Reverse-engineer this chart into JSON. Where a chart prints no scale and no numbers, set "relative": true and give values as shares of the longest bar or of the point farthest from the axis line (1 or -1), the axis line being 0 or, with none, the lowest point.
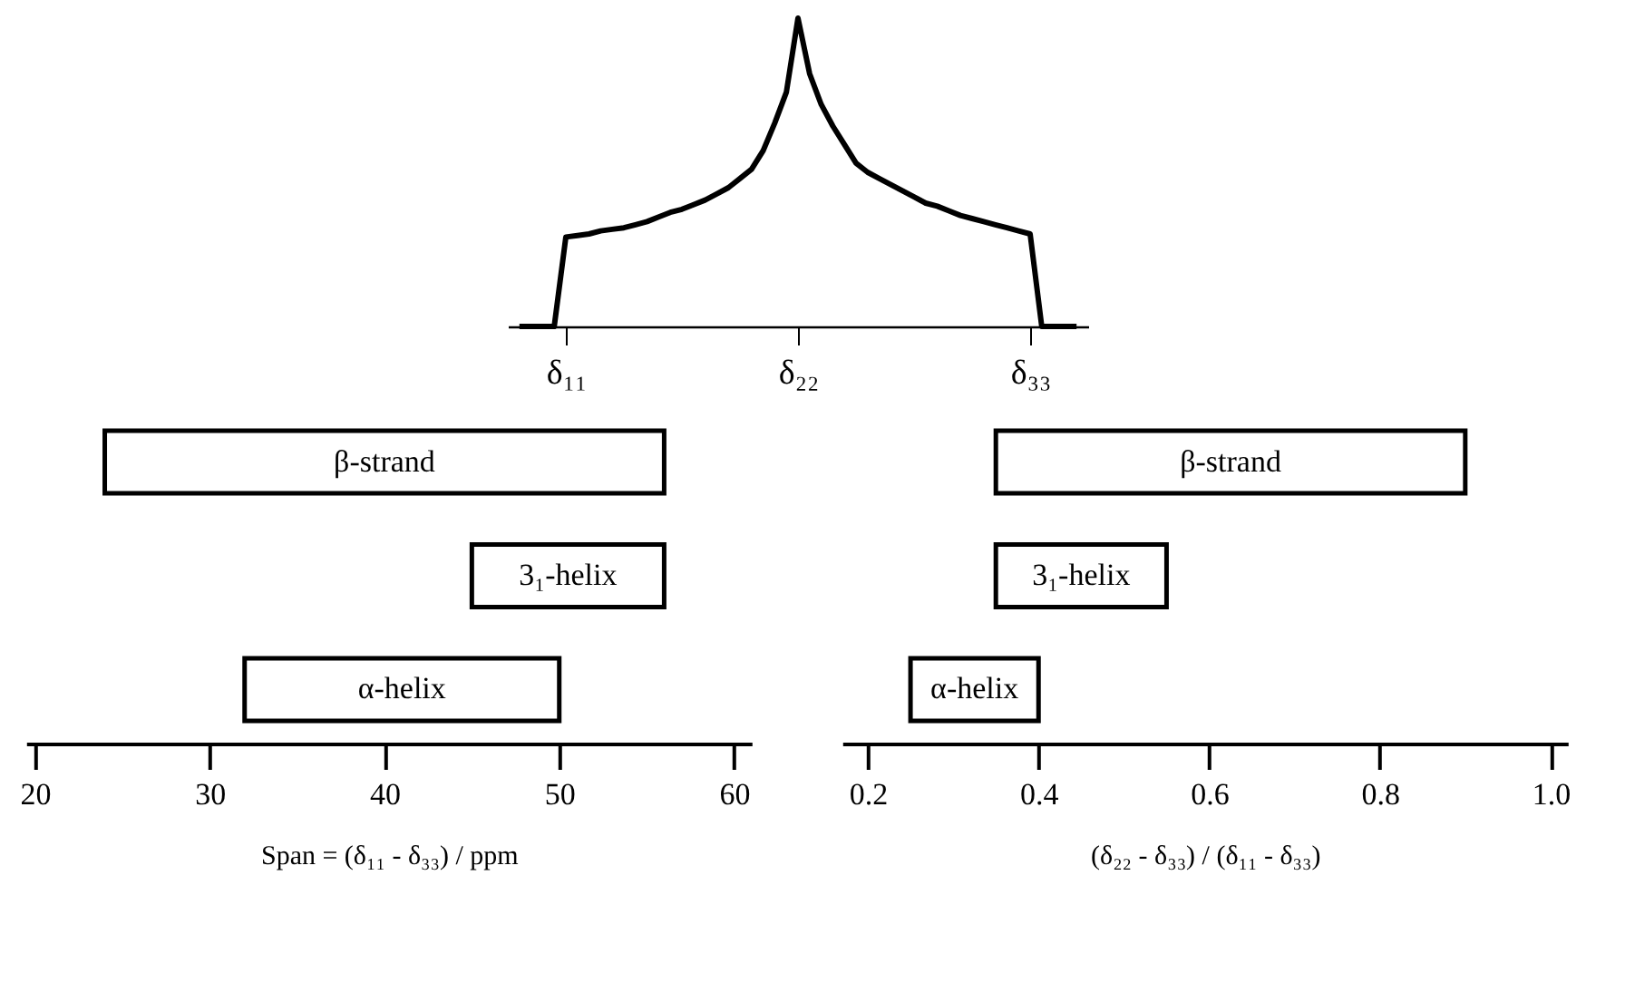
{
  "chart_data": [
    {
      "type": "line",
      "relative": true,
      "tick_labels": "x",
      "grid": false,
      "marker": "none",
      "line_style": "solid",
      "categories": [
        null,
        null,
        null,
        null,
        "δ₁₁",
        null,
        null,
        null,
        null,
        null,
        null,
        null,
        null,
        null,
        null,
        null,
        null,
        null,
        null,
        null,
        null,
        null,
        null,
        null,
        "δ₂₂",
        null,
        null,
        null,
        null,
        null,
        null,
        null,
        null,
        null,
        null,
        null,
        null,
        null,
        null,
        null,
        null,
        null,
        null,
        null,
        "δ₃₃",
        null,
        null,
        null,
        null
      ],
      "series": [
        {
          "color": "#000000",
          "values": [
            0,
            0,
            0,
            0,
            0.29,
            0.295,
            0.3,
            0.31,
            0.315,
            0.32,
            0.33,
            0.34,
            0.355,
            0.37,
            0.38,
            0.395,
            0.41,
            0.43,
            0.45,
            0.48,
            0.51,
            0.57,
            0.66,
            0.76,
            1,
            0.82,
            0.72,
            0.65,
            0.59,
            0.53,
            0.5,
            0.48,
            0.46,
            0.44,
            0.42,
            0.4,
            0.39,
            0.375,
            0.36,
            0.35,
            0.34,
            0.33,
            0.32,
            0.31,
            0.3,
            0,
            0,
            0,
            0
          ]
        }
      ]
    },
    {
      "type": "bar",
      "orientation": "horizontal",
      "tick_labels": "x",
      "grid": false,
      "categories": [
        "β-strand",
        "3₁-helix",
        "α-helix"
      ],
      "base": [
        24,
        45,
        32
      ],
      "values": [
        32,
        11,
        18
      ],
      "color": "#ffffff",
      "xlim": [
        19.5,
        61
      ],
      "xticks": [
        20,
        30,
        40,
        50,
        60
      ],
      "xlabel": "Span = (δ₁₁ - δ₃₃) / ppm"
    },
    {
      "type": "bar",
      "orientation": "horizontal",
      "tick_labels": "x",
      "grid": false,
      "categories": [
        "β-strand",
        "3₁-helix",
        "α-helix"
      ],
      "base": [
        0.35,
        0.35,
        0.25
      ],
      "values": [
        0.55,
        0.2,
        0.15
      ],
      "color": "#ffffff",
      "xlim": [
        0.17,
        1.02
      ],
      "xticks": [
        {
          "value": 0.2,
          "label": "0.2"
        },
        {
          "value": 0.4,
          "label": "0.4"
        },
        {
          "value": 0.6,
          "label": "0.6"
        },
        {
          "value": 0.8,
          "label": "0.8"
        },
        {
          "value": 1.0,
          "label": "1.0"
        }
      ],
      "xlabel": "(δ₂₂ - δ₃₃) / (δ₁₁ - δ₃₃)"
    }
  ]
}
